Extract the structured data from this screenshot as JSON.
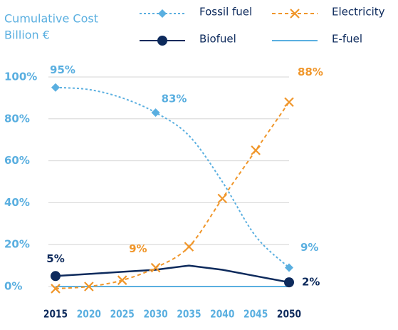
{
  "chart_data": {
    "type": "line",
    "title": "Cumulative Cost",
    "subtitle": "Billion €",
    "categories": [
      "2015",
      "2020",
      "2025",
      "2030",
      "2035",
      "2040",
      "2045",
      "2050"
    ],
    "ylim": [
      0,
      100
    ],
    "yticks": [
      {
        "value": 0,
        "label": "0%"
      },
      {
        "value": 20,
        "label": "20%"
      },
      {
        "value": 40,
        "label": "40%"
      },
      {
        "value": 60,
        "label": "60%"
      },
      {
        "value": 80,
        "label": "80%"
      },
      {
        "value": 100,
        "label": "100%"
      }
    ],
    "grid": true,
    "legend": "top-right",
    "series": [
      {
        "name": "Fossil fuel",
        "color": "#5aafe0",
        "marker": "diamond",
        "dash": "dotted",
        "values": [
          95,
          94,
          90,
          83,
          72,
          50,
          24,
          9
        ],
        "value_labels": [
          "95%",
          null,
          null,
          "83%",
          null,
          null,
          null,
          "9%"
        ]
      },
      {
        "name": "Electricity",
        "color": "#f0962a",
        "marker": "x",
        "dash": "dashed",
        "values": [
          -1,
          0,
          3,
          9,
          19,
          42,
          65,
          88
        ],
        "value_labels": [
          null,
          null,
          null,
          "9%",
          null,
          null,
          null,
          "88%"
        ]
      },
      {
        "name": "Biofuel",
        "color": "#0d2a5c",
        "marker": "circle",
        "dash": "solid",
        "values": [
          5,
          6,
          7,
          8,
          10,
          8,
          5,
          2
        ],
        "value_labels": [
          "5%",
          null,
          null,
          null,
          null,
          null,
          null,
          "2%"
        ]
      },
      {
        "name": "E-fuel",
        "color": "#5aafe0",
        "marker": null,
        "dash": "solid",
        "values": [
          0,
          0,
          0,
          0,
          0,
          0,
          0,
          0
        ]
      }
    ]
  }
}
